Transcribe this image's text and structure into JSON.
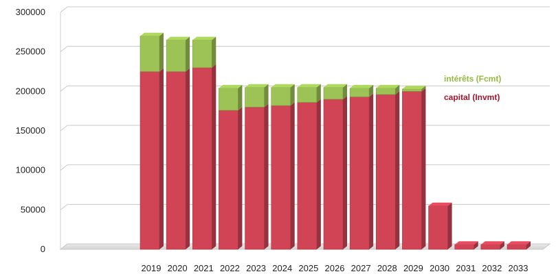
{
  "chart_data": {
    "type": "bar",
    "categories": [
      "2019",
      "2020",
      "2021",
      "2022",
      "2023",
      "2024",
      "2025",
      "2026",
      "2027",
      "2028",
      "2029",
      "2030",
      "2031",
      "2032",
      "2033"
    ],
    "series": [
      {
        "name": "capital (Invmt)",
        "color": "#d04456",
        "values": [
          225000,
          225000,
          230000,
          176000,
          180000,
          182000,
          186000,
          190000,
          193000,
          196000,
          200000,
          55000,
          6000,
          6000,
          6000
        ]
      },
      {
        "name": "intérêts (Fcmt)",
        "color": "#9dc255",
        "values": [
          45000,
          40000,
          35000,
          28000,
          25000,
          23000,
          19000,
          15000,
          11000,
          8000,
          3000,
          0,
          0,
          0,
          0
        ]
      }
    ],
    "stacked": true,
    "y_ticks": [
      "0",
      "50000",
      "100000",
      "150000",
      "200000",
      "250000",
      "300000"
    ],
    "ylim": [
      0,
      300000
    ],
    "grid": true,
    "legend": "right",
    "title": "",
    "xlabel": "",
    "ylabel": ""
  }
}
